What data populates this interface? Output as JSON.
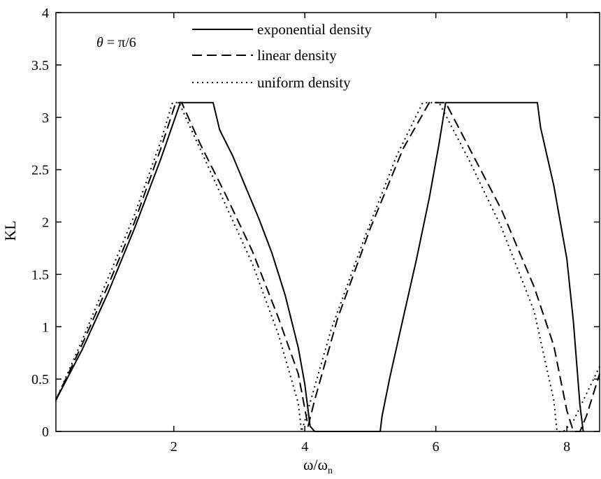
{
  "chart_data": {
    "type": "line",
    "xlabel": "ω/ωn",
    "xlabel_main": "ω/ω",
    "xlabel_sub": "n",
    "ylabel": "KL",
    "xlim": [
      0.2,
      8.5
    ],
    "ylim": [
      0,
      4
    ],
    "xticks": [
      2,
      4,
      6,
      8
    ],
    "yticks": [
      0,
      0.5,
      1,
      1.5,
      2,
      2.5,
      3,
      3.5,
      4
    ],
    "xtick_labels": [
      "2",
      "4",
      "6",
      "8"
    ],
    "ytick_labels": [
      "0",
      "0.5",
      "1",
      "1.5",
      "2",
      "2.5",
      "3",
      "3.5",
      "4"
    ],
    "grid": false,
    "legend_position": "top",
    "annotation": {
      "main": "θ = π/6",
      "symbol": "θ",
      "rest": " = π/6",
      "position": "top-left"
    },
    "series": [
      {
        "name": "exponential density",
        "style": "solid",
        "points": [
          [
            0.2,
            0.3
          ],
          [
            0.6,
            0.78
          ],
          [
            1.0,
            1.33
          ],
          [
            1.4,
            1.94
          ],
          [
            1.8,
            2.6
          ],
          [
            2.1,
            3.14
          ],
          [
            2.6,
            3.14
          ],
          [
            2.7,
            2.88
          ],
          [
            2.9,
            2.63
          ],
          [
            3.1,
            2.33
          ],
          [
            3.3,
            2.03
          ],
          [
            3.5,
            1.7
          ],
          [
            3.7,
            1.3
          ],
          [
            3.9,
            0.8
          ],
          [
            4.0,
            0.45
          ],
          [
            4.08,
            0.05
          ],
          [
            4.15,
            0
          ],
          [
            5.15,
            0
          ],
          [
            5.18,
            0.15
          ],
          [
            5.3,
            0.52
          ],
          [
            5.5,
            1.08
          ],
          [
            5.7,
            1.63
          ],
          [
            5.9,
            2.23
          ],
          [
            6.05,
            2.75
          ],
          [
            6.15,
            3.14
          ],
          [
            7.55,
            3.14
          ],
          [
            7.6,
            2.9
          ],
          [
            7.8,
            2.35
          ],
          [
            8.0,
            1.65
          ],
          [
            8.1,
            1.05
          ],
          [
            8.2,
            0.25
          ],
          [
            8.25,
            0
          ]
        ]
      },
      {
        "name": "linear density",
        "style": "dashed",
        "points": [
          [
            0.2,
            0.3
          ],
          [
            0.6,
            0.83
          ],
          [
            1.0,
            1.4
          ],
          [
            1.4,
            2.0
          ],
          [
            1.8,
            2.7
          ],
          [
            2.03,
            3.14
          ],
          [
            2.12,
            3.14
          ],
          [
            2.4,
            2.75
          ],
          [
            2.8,
            2.25
          ],
          [
            3.2,
            1.72
          ],
          [
            3.6,
            1.08
          ],
          [
            3.9,
            0.55
          ],
          [
            4.05,
            0.05
          ],
          [
            4.15,
            0.3
          ],
          [
            4.5,
            1.08
          ],
          [
            5.0,
            1.94
          ],
          [
            5.5,
            2.7
          ],
          [
            5.9,
            3.14
          ],
          [
            6.15,
            3.14
          ],
          [
            6.5,
            2.72
          ],
          [
            7.0,
            2.12
          ],
          [
            7.5,
            1.38
          ],
          [
            7.8,
            0.82
          ],
          [
            8.0,
            0.2
          ],
          [
            8.1,
            0
          ],
          [
            8.2,
            0
          ],
          [
            8.3,
            0.15
          ],
          [
            8.5,
            0.55
          ]
        ]
      },
      {
        "name": "uniform density",
        "style": "dotted",
        "points": [
          [
            0.2,
            0.3
          ],
          [
            0.6,
            0.87
          ],
          [
            1.0,
            1.47
          ],
          [
            1.4,
            2.07
          ],
          [
            1.8,
            2.77
          ],
          [
            1.98,
            3.14
          ],
          [
            2.08,
            3.14
          ],
          [
            2.4,
            2.7
          ],
          [
            2.8,
            2.15
          ],
          [
            3.2,
            1.6
          ],
          [
            3.6,
            0.92
          ],
          [
            3.9,
            0.27
          ],
          [
            3.95,
            0
          ],
          [
            4.0,
            0.1
          ],
          [
            4.4,
            0.97
          ],
          [
            4.9,
            1.83
          ],
          [
            5.4,
            2.63
          ],
          [
            5.8,
            3.14
          ],
          [
            6.05,
            3.14
          ],
          [
            6.5,
            2.6
          ],
          [
            7.0,
            1.95
          ],
          [
            7.5,
            1.15
          ],
          [
            7.8,
            0.3
          ],
          [
            7.85,
            0
          ],
          [
            7.95,
            0
          ],
          [
            8.1,
            0.1
          ],
          [
            8.5,
            0.62
          ]
        ]
      }
    ]
  }
}
